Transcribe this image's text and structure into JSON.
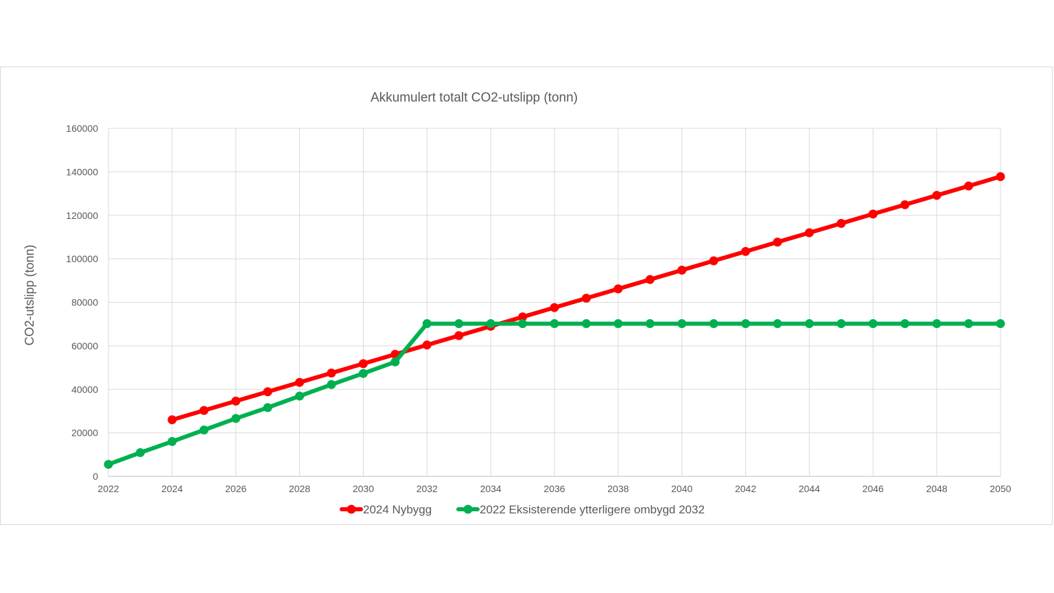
{
  "chart_data": {
    "type": "line",
    "title": "Akkumulert totalt CO2-utslipp (tonn)",
    "xlabel": "",
    "ylabel": "CO2-utslipp (tonn)",
    "xlim": [
      2022,
      2050
    ],
    "ylim": [
      0,
      160000
    ],
    "x_ticks": [
      "2022",
      "2024",
      "2026",
      "2028",
      "2030",
      "2032",
      "2034",
      "2036",
      "2038",
      "2040",
      "2042",
      "2044",
      "2046",
      "2048",
      "2050"
    ],
    "y_ticks": [
      "0",
      "20000",
      "40000",
      "60000",
      "80000",
      "100000",
      "120000",
      "140000",
      "160000"
    ],
    "grid": true,
    "legend_position": "bottom",
    "series": [
      {
        "name": "2024 Nybygg",
        "color": "#ff0000",
        "x": [
          2024,
          2025,
          2026,
          2027,
          2028,
          2029,
          2030,
          2031,
          2032,
          2033,
          2034,
          2035,
          2036,
          2037,
          2038,
          2039,
          2040,
          2041,
          2042,
          2043,
          2044,
          2045,
          2046,
          2047,
          2048,
          2049,
          2050
        ],
        "values": [
          26000,
          30300,
          34600,
          38900,
          43200,
          47500,
          51800,
          56100,
          60400,
          64700,
          69000,
          73300,
          77600,
          81900,
          86200,
          90500,
          94800,
          99100,
          103400,
          107700,
          112000,
          116300,
          120600,
          124900,
          129200,
          133500,
          137800
        ]
      },
      {
        "name": "2022 Eksisterende ytterligere ombygd 2032",
        "color": "#00b050",
        "x": [
          2022,
          2023,
          2024,
          2025,
          2026,
          2027,
          2028,
          2029,
          2030,
          2031,
          2032,
          2033,
          2034,
          2035,
          2036,
          2037,
          2038,
          2039,
          2040,
          2041,
          2042,
          2043,
          2044,
          2045,
          2046,
          2047,
          2048,
          2049,
          2050
        ],
        "values": [
          5500,
          10900,
          16000,
          21300,
          26600,
          31600,
          36900,
          42200,
          47300,
          52600,
          70200,
          70200,
          70200,
          70200,
          70200,
          70200,
          70200,
          70200,
          70200,
          70200,
          70200,
          70200,
          70200,
          70200,
          70200,
          70200,
          70200,
          70200,
          70200
        ]
      }
    ]
  }
}
